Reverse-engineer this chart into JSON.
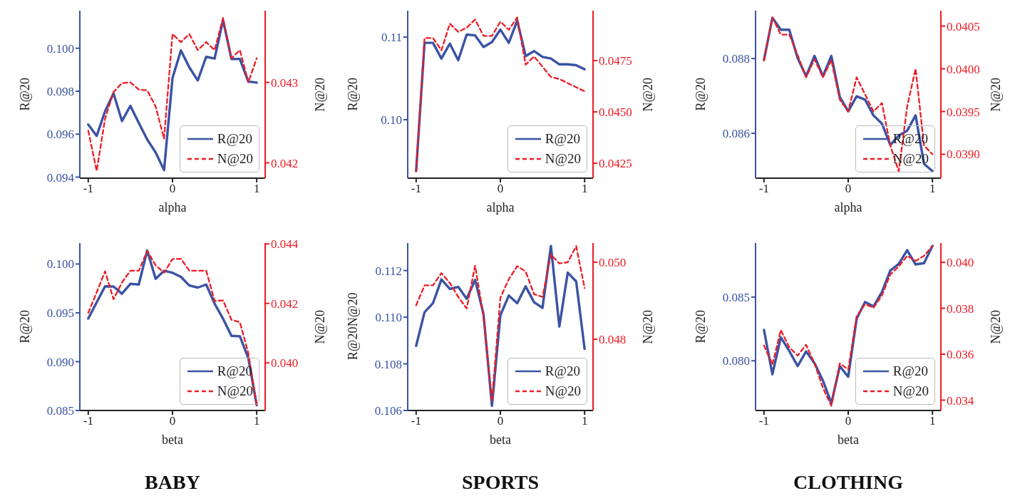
{
  "chart_data": [
    {
      "type": "line",
      "x": [
        -1,
        -0.9,
        -0.8,
        -0.7,
        -0.6,
        -0.5,
        -0.4,
        -0.3,
        -0.2,
        -0.1,
        0,
        0.1,
        0.2,
        0.3,
        0.4,
        0.5,
        0.6,
        0.7,
        0.8,
        0.9,
        1
      ],
      "xlabel": "alpha",
      "ylabel": "R@20",
      "y2label": "N@20",
      "xlim": [
        -1.1,
        1.1
      ],
      "xticks": [
        -1,
        0,
        1
      ],
      "ylim": [
        0.09395,
        0.10175
      ],
      "yticks": [
        0.094,
        0.096,
        0.098,
        {
          "value": 0.1,
          "label": "0.100"
        }
      ],
      "y2lim": [
        0.04181,
        0.04389
      ],
      "y2ticks": [
        0.042,
        0.043
      ],
      "legend": "bottom right",
      "series": [
        {
          "name": "R@20",
          "color": "#3a53a4",
          "line_style": "solid",
          "values": [
            0.09645,
            0.09592,
            0.09707,
            0.0979,
            0.09661,
            0.09732,
            0.09652,
            0.09575,
            0.09515,
            0.09432,
            0.09861,
            0.0999,
            0.09911,
            0.0985,
            0.0996,
            0.09952,
            0.10131,
            0.0995,
            0.0995,
            0.09845,
            0.0984
          ]
        },
        {
          "name": "N@20",
          "color": "#ed1c24",
          "line_style": "dashed",
          "axis": "y2",
          "values": [
            0.0424,
            0.0419,
            0.04255,
            0.04288,
            0.04299,
            0.043,
            0.04291,
            0.0429,
            0.0427,
            0.0423,
            0.0436,
            0.0435,
            0.0436,
            0.0434,
            0.0435,
            0.0434,
            0.0438,
            0.0433,
            0.0434,
            0.043,
            0.0433
          ]
        }
      ]
    },
    {
      "type": "line",
      "x": [
        -1,
        -0.9,
        -0.8,
        -0.7,
        -0.6,
        -0.5,
        -0.4,
        -0.3,
        -0.2,
        -0.1,
        0,
        0.1,
        0.2,
        0.3,
        0.4,
        0.5,
        0.6,
        0.7,
        0.8,
        0.9,
        1
      ],
      "xlabel": "alpha",
      "ylabel": "R@20",
      "y2label": "N@20",
      "xlim": [
        -1.1,
        1.1
      ],
      "xticks": [
        -1,
        0,
        1
      ],
      "ylim": [
        0.09293,
        0.11319
      ],
      "yticks": [
        {
          "value": 0.1,
          "label": "0.10"
        },
        0.11
      ],
      "y2lim": [
        0.04177,
        0.04993
      ],
      "y2ticks": [
        0.0425,
        {
          "value": 0.045,
          "label": "0.0450"
        },
        0.0475
      ],
      "legend": "bottom right",
      "series": [
        {
          "name": "R@20",
          "color": "#3a53a4",
          "line_style": "solid",
          "values": [
            0.0938,
            0.1093,
            0.1093,
            0.1074,
            0.1092,
            0.1072,
            0.1103,
            0.1102,
            0.1088,
            0.1094,
            0.1109,
            0.1093,
            0.112,
            0.1077,
            0.1083,
            0.1076,
            0.1074,
            0.1067,
            0.1067,
            0.1066,
            0.1061
          ]
        },
        {
          "name": "N@20",
          "color": "#ed1c24",
          "line_style": "dashed",
          "axis": "y2",
          "values": [
            0.0421,
            0.0486,
            0.0486,
            0.048,
            0.0493,
            0.0489,
            0.0491,
            0.0495,
            0.0487,
            0.0487,
            0.0494,
            0.049,
            0.0496,
            0.0473,
            0.0477,
            0.0472,
            0.0467,
            0.0466,
            0.0464,
            0.0462,
            0.046
          ]
        }
      ]
    },
    {
      "type": "line",
      "x": [
        -1,
        -0.9,
        -0.8,
        -0.7,
        -0.6,
        -0.5,
        -0.4,
        -0.3,
        -0.2,
        -0.1,
        0,
        0.1,
        0.2,
        0.3,
        0.4,
        0.5,
        0.6,
        0.7,
        0.8,
        0.9,
        1
      ],
      "xlabel": "alpha",
      "ylabel": "R@20",
      "y2label": "N@20",
      "xlim": [
        -1.1,
        1.1
      ],
      "xticks": [
        -1,
        0,
        1
      ],
      "ylim": [
        0.0848,
        0.08928
      ],
      "yticks": [
        0.086,
        0.088
      ],
      "y2lim": [
        0.03872,
        0.04068
      ],
      "y2ticks": [
        {
          "value": 0.039,
          "label": "0.0390"
        },
        0.0395,
        {
          "value": 0.04,
          "label": "0.0400"
        },
        0.0405
      ],
      "legend": "bottom right",
      "series": [
        {
          "name": "R@20",
          "color": "#3a53a4",
          "line_style": "solid",
          "values": [
            0.08796,
            0.08909,
            0.08877,
            0.08877,
            0.08801,
            0.08753,
            0.08807,
            0.08753,
            0.08807,
            0.08697,
            0.08659,
            0.08699,
            0.0869,
            0.08648,
            0.08626,
            0.08569,
            0.08594,
            0.08607,
            0.08648,
            0.08518,
            0.08499
          ]
        },
        {
          "name": "N@20",
          "color": "#ed1c24",
          "line_style": "dashed",
          "axis": "y2",
          "values": [
            0.0401,
            0.0406,
            0.0404,
            0.0404,
            0.04016,
            0.0399,
            0.04011,
            0.0399,
            0.0401,
            0.03964,
            0.0395,
            0.0399,
            0.0397,
            0.0395,
            0.0396,
            0.0391,
            0.0388,
            0.03956,
            0.04,
            0.0391,
            0.039
          ]
        }
      ]
    },
    {
      "type": "line",
      "title": "BABY",
      "x": [
        -1,
        -0.9,
        -0.8,
        -0.7,
        -0.6,
        -0.5,
        -0.4,
        -0.3,
        -0.2,
        -0.1,
        0,
        0.1,
        0.2,
        0.3,
        0.4,
        0.5,
        0.6,
        0.7,
        0.8,
        0.9,
        1
      ],
      "xlabel": "beta",
      "ylabel": "R@20",
      "y2label": "N@20",
      "xlim": [
        -1.1,
        1.1
      ],
      "xticks": [
        -1,
        0,
        1
      ],
      "ylim": [
        0.085,
        0.10215
      ],
      "yticks": [
        0.085,
        {
          "value": 0.09,
          "label": "0.090"
        },
        0.095,
        {
          "value": 0.1,
          "label": "0.100"
        }
      ],
      "y2lim": [
        0.0384,
        0.04403
      ],
      "y2ticks": [
        {
          "value": 0.04,
          "label": "0.040"
        },
        0.042,
        0.044
      ],
      "legend": "bottom right",
      "series": [
        {
          "name": "R@20",
          "color": "#3a53a4",
          "line_style": "solid",
          "values": [
            0.09442,
            0.09607,
            0.09772,
            0.0977,
            0.09696,
            0.09797,
            0.0979,
            0.10139,
            0.09848,
            0.0993,
            0.09911,
            0.09868,
            0.0978,
            0.09759,
            0.0979,
            0.09594,
            0.0944,
            0.09264,
            0.0926,
            0.09036,
            0.08554
          ]
        },
        {
          "name": "N@20",
          "color": "#ed1c24",
          "line_style": "dashed",
          "axis": "y2",
          "values": [
            0.04168,
            0.04237,
            0.04308,
            0.04214,
            0.0427,
            0.0431,
            0.0431,
            0.04376,
            0.04328,
            0.04303,
            0.04349,
            0.0435,
            0.0431,
            0.0431,
            0.0431,
            0.04208,
            0.0421,
            0.04145,
            0.04137,
            0.04033,
            0.03858
          ]
        }
      ]
    },
    {
      "type": "line",
      "title": "SPORTS",
      "annotations": [
        "N@20"
      ],
      "x": [
        -1,
        -0.9,
        -0.8,
        -0.7,
        -0.6,
        -0.5,
        -0.4,
        -0.3,
        -0.2,
        -0.1,
        0,
        0.1,
        0.2,
        0.3,
        0.4,
        0.5,
        0.6,
        0.7,
        0.8,
        0.9,
        1
      ],
      "xlabel": "beta",
      "ylabel": "R@20",
      "y2label": "N@20",
      "xlim": [
        -1.1,
        1.1
      ],
      "xticks": [
        -1,
        0,
        1
      ],
      "ylim": [
        0.106,
        0.11318
      ],
      "yticks": [
        0.106,
        0.108,
        {
          "value": 0.11,
          "label": "0.110"
        },
        0.112
      ],
      "y2lim": [
        0.04615,
        0.0505
      ],
      "y2ticks": [
        0.048,
        {
          "value": 0.05,
          "label": "0.050"
        }
      ],
      "legend": "bottom right",
      "series": [
        {
          "name": "R@20",
          "color": "#3a53a4",
          "line_style": "solid",
          "values": [
            0.10877,
            0.11021,
            0.1106,
            0.11162,
            0.11121,
            0.1113,
            0.11079,
            0.1116,
            0.11013,
            0.1062,
            0.11008,
            0.11093,
            0.1106,
            0.11132,
            0.11064,
            0.1104,
            0.11305,
            0.1096,
            0.11191,
            0.11153,
            0.10864
          ]
        },
        {
          "name": "N@20",
          "color": "#ed1c24",
          "line_style": "dashed",
          "axis": "y2",
          "values": [
            0.04888,
            0.0494,
            0.0494,
            0.04972,
            0.04946,
            0.0491,
            0.0488,
            0.04991,
            0.0486,
            0.04638,
            0.04908,
            0.04956,
            0.0499,
            0.04976,
            0.04917,
            0.0491,
            0.0502,
            0.04997,
            0.05,
            0.05042,
            0.04933
          ]
        }
      ]
    },
    {
      "type": "line",
      "title": "CLOTHING",
      "x": [
        -1,
        -0.9,
        -0.8,
        -0.7,
        -0.6,
        -0.5,
        -0.4,
        -0.3,
        -0.2,
        -0.1,
        0,
        0.1,
        0.2,
        0.3,
        0.4,
        0.5,
        0.6,
        0.7,
        0.8,
        0.9,
        1
      ],
      "xlabel": "beta",
      "ylabel": "R@20",
      "y2label": "N@20",
      "xlim": [
        -1.1,
        1.1
      ],
      "xticks": [
        -1,
        0,
        1
      ],
      "ylim": [
        0.0761,
        0.08924
      ],
      "yticks": [
        {
          "value": 0.08,
          "label": "0.080"
        },
        0.085
      ],
      "y2lim": [
        0.03355,
        0.04084
      ],
      "y2ticks": [
        0.034,
        0.036,
        0.038,
        {
          "value": 0.04,
          "label": "0.040"
        }
      ],
      "legend": "bottom right",
      "series": [
        {
          "name": "R@20",
          "color": "#3a53a4",
          "line_style": "solid",
          "values": [
            0.08242,
            0.07894,
            0.08184,
            0.08077,
            0.07958,
            0.08074,
            0.07981,
            0.07845,
            0.07667,
            0.07958,
            0.07874,
            0.0833,
            0.08461,
            0.08426,
            0.08539,
            0.08708,
            0.0876,
            0.08868,
            0.08756,
            0.08766,
            0.08901
          ]
        },
        {
          "name": "N@20",
          "color": "#ed1c24",
          "line_style": "dashed",
          "axis": "y2",
          "values": [
            0.03638,
            0.03555,
            0.03705,
            0.0363,
            0.03594,
            0.03641,
            0.0356,
            0.03453,
            0.03375,
            0.0356,
            0.03533,
            0.03765,
            0.03818,
            0.03802,
            0.03856,
            0.03947,
            0.03982,
            0.04028,
            0.04006,
            0.04028,
            0.04071
          ]
        }
      ]
    }
  ]
}
